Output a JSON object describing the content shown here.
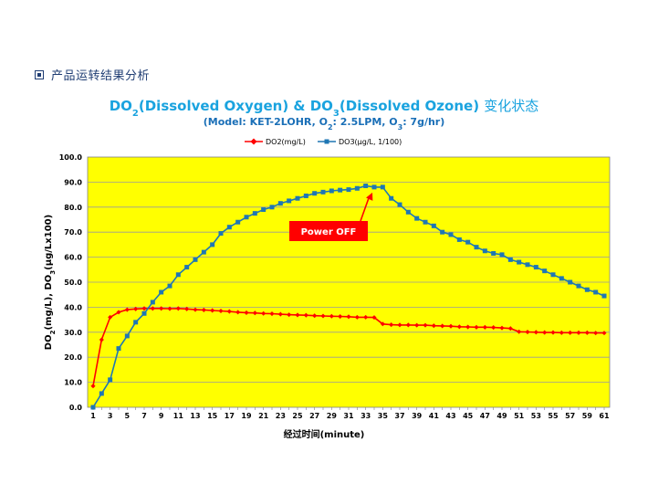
{
  "section": {
    "title": "产品运转结果分析"
  },
  "chart_data": {
    "type": "line",
    "title": {
      "do2_prefix": "DO",
      "do2_sub": "2",
      "mid": "(Dissolved Oxygen) & DO",
      "do3_sub": "3",
      "end": "(Dissolved Ozone) ",
      "cn": "变化状态"
    },
    "subtitle": {
      "a": "(Model: KET-2LOHR, O",
      "a_sub": "2",
      "b": ": 2.5LPM, O",
      "b_sub": "3",
      "c": ": 7g/hr)"
    },
    "ylabel": {
      "a": "DO",
      "a_sub": "2",
      "b": "(mg/L), DO",
      "b_sub": "3",
      "c": "(μg/Lx100)"
    },
    "xlabel": "经过时间(minute)",
    "x": [
      1,
      2,
      3,
      4,
      5,
      6,
      7,
      8,
      9,
      10,
      11,
      12,
      13,
      14,
      15,
      16,
      17,
      18,
      19,
      20,
      21,
      22,
      23,
      24,
      25,
      26,
      27,
      28,
      29,
      30,
      31,
      32,
      33,
      34,
      35,
      36,
      37,
      38,
      39,
      40,
      41,
      42,
      43,
      44,
      45,
      46,
      47,
      48,
      49,
      50,
      51,
      52,
      53,
      54,
      55,
      56,
      57,
      58,
      59,
      60,
      61
    ],
    "x_tick_labels": [
      "1",
      "3",
      "5",
      "7",
      "9",
      "11",
      "13",
      "15",
      "17",
      "19",
      "21",
      "23",
      "25",
      "27",
      "29",
      "31",
      "33",
      "35",
      "37",
      "39",
      "41",
      "43",
      "45",
      "47",
      "49",
      "51",
      "53",
      "55",
      "57",
      "59",
      "61"
    ],
    "y_tick_labels": [
      "0.0",
      "10.0",
      "20.0",
      "30.0",
      "40.0",
      "50.0",
      "60.0",
      "70.0",
      "80.0",
      "90.0",
      "100.0"
    ],
    "ylim": [
      0,
      100
    ],
    "grid": true,
    "legend_position": "top",
    "background": "#ffff00",
    "series": [
      {
        "name": "DO2(mg/L)",
        "color": "#ff0000",
        "marker": "diamond",
        "values": [
          8.5,
          27,
          36,
          38,
          39,
          39.3,
          39.5,
          39.5,
          39.5,
          39.4,
          39.5,
          39.3,
          39,
          38.9,
          38.7,
          38.5,
          38.3,
          38,
          37.8,
          37.7,
          37.5,
          37.4,
          37.2,
          37,
          36.9,
          36.8,
          36.6,
          36.5,
          36.4,
          36.3,
          36.2,
          36,
          36,
          35.9,
          33.3,
          33,
          32.9,
          32.9,
          32.8,
          32.8,
          32.6,
          32.5,
          32.4,
          32.2,
          32.1,
          32,
          32,
          31.9,
          31.7,
          31.5,
          30.2,
          30.1,
          30,
          29.9,
          29.9,
          29.8,
          29.8,
          29.8,
          29.8,
          29.7,
          29.7
        ]
      },
      {
        "name": "DO3(μg/L, 1/100)",
        "color": "#1f77b4",
        "marker": "square",
        "values": [
          0,
          5.5,
          11,
          23.5,
          28.5,
          34,
          37.5,
          42,
          46,
          48.5,
          53,
          56,
          59,
          62,
          65,
          69.5,
          72,
          74,
          76,
          77.5,
          79,
          80,
          81.5,
          82.5,
          83.5,
          84.5,
          85.5,
          86,
          86.5,
          86.8,
          87,
          87.5,
          88.5,
          88,
          88,
          83.5,
          81,
          78,
          75.5,
          74,
          72.5,
          70,
          69,
          67,
          66,
          64,
          62.5,
          61.5,
          61,
          59,
          58,
          57,
          56,
          54.5,
          53,
          51.5,
          50,
          48.5,
          47,
          46,
          44.5
        ]
      }
    ],
    "annotation": {
      "text": "Power OFF",
      "target_x": 34,
      "target_series": 1
    }
  }
}
